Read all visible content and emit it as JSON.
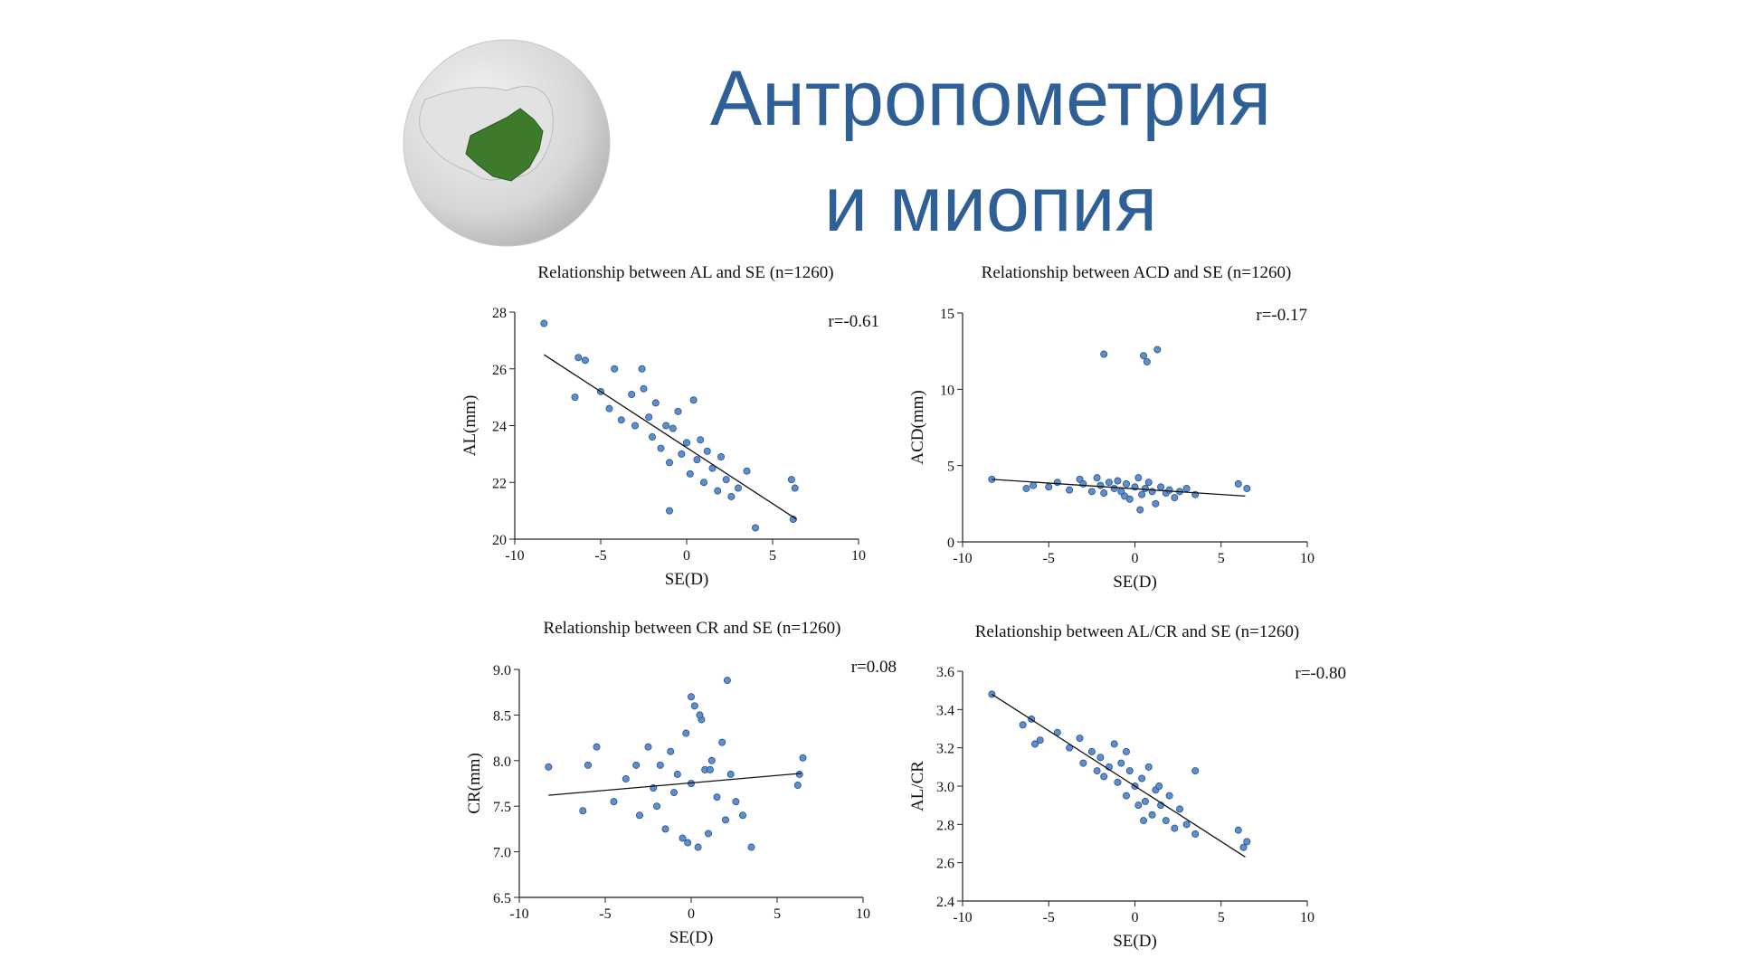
{
  "title": [
    "Антропометрия",
    "и миопия"
  ],
  "chart_data": [
    {
      "type": "scatter",
      "title": "Relationship between AL and SE (n=1260)",
      "xlabel": "SE(D)",
      "ylabel": "AL(mm)",
      "annotation": "r=-0.61",
      "xlim": [
        -10,
        10
      ],
      "xticks": [
        -10,
        -5,
        0,
        5,
        10
      ],
      "ylim": [
        20,
        28
      ],
      "yticks": [
        20,
        22,
        24,
        26,
        28
      ],
      "color": "#5b8fd0",
      "x": [
        -8.3,
        -6.3,
        -5.9,
        -6.5,
        -4.2,
        -2.6,
        -5.0,
        -4.5,
        -3.8,
        -3.2,
        -3.0,
        -2.5,
        -2.2,
        -2.0,
        -1.8,
        -1.5,
        -1.2,
        -1.0,
        -0.8,
        -0.5,
        -0.3,
        0.0,
        0.2,
        0.4,
        0.6,
        0.8,
        1.0,
        1.2,
        1.5,
        1.8,
        2.0,
        2.3,
        2.6,
        3.0,
        3.5,
        4.0,
        6.1,
        6.3,
        6.2,
        -1.0
      ],
      "values": [
        27.6,
        26.4,
        26.3,
        25.0,
        26.0,
        26.0,
        25.2,
        24.6,
        24.2,
        25.1,
        24.0,
        25.3,
        24.3,
        23.6,
        24.8,
        23.2,
        24.0,
        22.7,
        23.9,
        24.5,
        23.0,
        23.4,
        22.3,
        24.9,
        22.8,
        23.5,
        22.0,
        23.1,
        22.5,
        21.7,
        22.9,
        22.1,
        21.5,
        21.8,
        22.4,
        20.4,
        22.1,
        21.8,
        20.7,
        21.0
      ],
      "trend": {
        "x": [
          -8.3,
          6.4
        ],
        "y": [
          26.5,
          20.7
        ]
      }
    },
    {
      "type": "scatter",
      "title": "Relationship between ACD and SE (n=1260)",
      "xlabel": "SE(D)",
      "ylabel": "ACD(mm)",
      "annotation": "r=-0.17",
      "xlim": [
        -10,
        10
      ],
      "xticks": [
        -10,
        -5,
        0,
        5,
        10
      ],
      "ylim": [
        0,
        15
      ],
      "yticks": [
        0,
        5,
        10,
        15
      ],
      "color": "#5b8fd0",
      "x": [
        -8.3,
        -6.3,
        -5.9,
        -5.0,
        -4.5,
        -3.8,
        -3.2,
        -3.0,
        -2.5,
        -2.2,
        -2.0,
        -1.8,
        -1.5,
        -1.2,
        -1.0,
        -0.8,
        -0.5,
        -0.3,
        0.0,
        0.2,
        0.4,
        0.6,
        0.8,
        1.0,
        1.2,
        1.5,
        1.8,
        2.0,
        2.3,
        2.6,
        3.0,
        3.5,
        6.0,
        6.5,
        -1.8,
        0.5,
        0.7,
        1.3,
        0.3,
        -0.6
      ],
      "values": [
        4.1,
        3.5,
        3.7,
        3.6,
        3.9,
        3.4,
        4.1,
        3.8,
        3.3,
        4.2,
        3.7,
        3.2,
        3.9,
        3.5,
        4.0,
        3.3,
        3.8,
        2.8,
        3.6,
        4.2,
        3.1,
        3.5,
        3.9,
        3.3,
        2.5,
        3.6,
        3.2,
        3.4,
        2.9,
        3.3,
        3.5,
        3.1,
        3.8,
        3.5,
        12.3,
        12.2,
        11.8,
        12.6,
        2.1,
        3.0
      ],
      "trend": {
        "x": [
          -8.3,
          6.4
        ],
        "y": [
          4.1,
          3.0
        ]
      }
    },
    {
      "type": "scatter",
      "title": "Relationship between CR and SE (n=1260)",
      "xlabel": "SE(D)",
      "ylabel": "CR(mm)",
      "annotation": "r=0.08",
      "xlim": [
        -10,
        10
      ],
      "xticks": [
        -10,
        -5,
        0,
        5,
        10
      ],
      "ylim": [
        6.5,
        9
      ],
      "yticks": [
        6.5,
        {
          "value": 7,
          "label": "7.0"
        },
        7.5,
        {
          "value": 8,
          "label": "8.0"
        },
        8.5,
        {
          "value": 9,
          "label": "9.0"
        }
      ],
      "color": "#5b8fd0",
      "x": [
        -8.3,
        -6.3,
        -6.0,
        -5.5,
        -4.5,
        -3.8,
        -3.2,
        -3.0,
        -2.5,
        -2.2,
        -2.0,
        -1.8,
        -1.5,
        -1.2,
        -1.0,
        -0.8,
        -0.5,
        -0.3,
        0.0,
        0.2,
        0.4,
        0.6,
        0.8,
        1.0,
        1.2,
        1.5,
        1.8,
        2.0,
        2.3,
        2.6,
        3.0,
        3.5,
        6.3,
        6.5,
        6.2,
        0.0,
        2.1,
        -0.2,
        0.5,
        1.1
      ],
      "values": [
        7.93,
        7.45,
        7.95,
        8.15,
        7.55,
        7.8,
        7.95,
        7.4,
        8.15,
        7.7,
        7.5,
        7.95,
        7.25,
        8.1,
        7.65,
        7.85,
        7.15,
        8.3,
        7.75,
        8.6,
        7.05,
        8.45,
        7.9,
        7.2,
        8.0,
        7.6,
        8.2,
        7.35,
        7.85,
        7.55,
        7.4,
        7.05,
        7.85,
        8.03,
        7.73,
        8.7,
        8.88,
        7.1,
        8.5,
        7.9
      ],
      "trend": {
        "x": [
          -8.3,
          6.4
        ],
        "y": [
          7.62,
          7.86
        ]
      }
    },
    {
      "type": "scatter",
      "title": "Relationship between AL/CR and SE (n=1260)",
      "xlabel": "SE(D)",
      "ylabel": "AL/CR",
      "annotation": "r=-0.80",
      "xlim": [
        -10,
        10
      ],
      "xticks": [
        -10,
        -5,
        0,
        5,
        10
      ],
      "ylim": [
        2.4,
        3.6
      ],
      "yticks": [
        2.4,
        2.6,
        2.8,
        {
          "value": 3,
          "label": "3.0"
        },
        3.2,
        3.4,
        3.6
      ],
      "color": "#5b8fd0",
      "x": [
        -8.3,
        -6.5,
        -6.0,
        -5.5,
        -4.5,
        -3.8,
        -3.2,
        -3.0,
        -2.5,
        -2.2,
        -2.0,
        -1.8,
        -1.5,
        -1.2,
        -1.0,
        -0.8,
        -0.5,
        -0.3,
        0.0,
        0.2,
        0.4,
        0.6,
        0.8,
        1.0,
        1.2,
        1.5,
        1.8,
        2.0,
        2.3,
        2.6,
        3.0,
        3.5,
        3.5,
        6.0,
        6.5,
        6.3,
        -5.8,
        -0.5,
        0.5,
        1.4
      ],
      "values": [
        3.48,
        3.32,
        3.35,
        3.24,
        3.28,
        3.2,
        3.25,
        3.12,
        3.18,
        3.08,
        3.15,
        3.05,
        3.1,
        3.22,
        3.02,
        3.12,
        2.95,
        3.08,
        3.0,
        2.9,
        3.04,
        2.92,
        3.1,
        2.85,
        2.98,
        2.9,
        2.82,
        2.95,
        2.78,
        2.88,
        2.8,
        2.75,
        3.08,
        2.77,
        2.71,
        2.68,
        3.22,
        3.18,
        2.82,
        3.0
      ],
      "trend": {
        "x": [
          -8.3,
          6.4
        ],
        "y": [
          3.48,
          2.63
        ]
      }
    }
  ]
}
